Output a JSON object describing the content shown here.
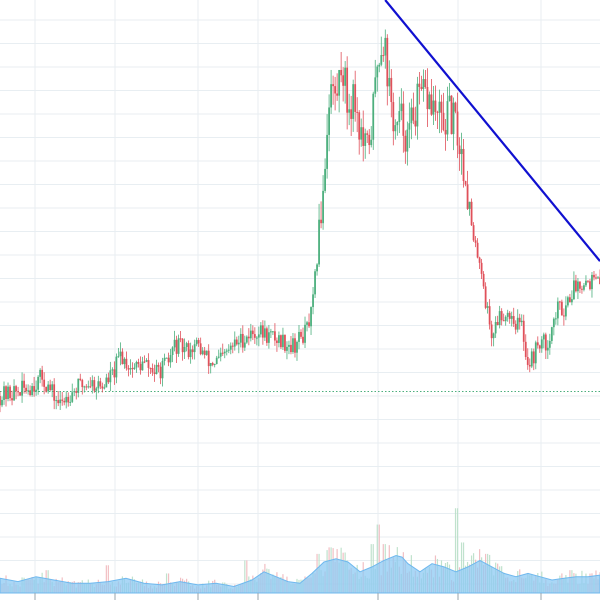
{
  "chart_data": {
    "type": "candlestick",
    "title": "",
    "xlabel": "",
    "ylabel": "",
    "grid": true,
    "legend": "none",
    "colors": {
      "up": "#4caf7d",
      "down": "#e0505a",
      "trendline": "#1010d0",
      "volume_area": "#8ec9f3",
      "volume_up": "#b9dfc8",
      "volume_down": "#f0b8bd",
      "reference_line": "#4caf7d",
      "grid": "#e8eef2"
    },
    "price_range": [
      0,
      100
    ],
    "volume_range": [
      0,
      100
    ],
    "reference_level": 17,
    "trendline": {
      "from": {
        "x": 64.2,
        "y": 100
      },
      "to": {
        "x": 100,
        "y": 53
      }
    },
    "price_path": [
      [
        0,
        16
      ],
      [
        3,
        17
      ],
      [
        5,
        18
      ],
      [
        7,
        20
      ],
      [
        9,
        16
      ],
      [
        10,
        14
      ],
      [
        11,
        16
      ],
      [
        13,
        18
      ],
      [
        15,
        19
      ],
      [
        17,
        18
      ],
      [
        19,
        21
      ],
      [
        20,
        25
      ],
      [
        22,
        22
      ],
      [
        24,
        23
      ],
      [
        26,
        21
      ],
      [
        28,
        23
      ],
      [
        29,
        27
      ],
      [
        31,
        26
      ],
      [
        33,
        27
      ],
      [
        35,
        23
      ],
      [
        37,
        24
      ],
      [
        39,
        27
      ],
      [
        41,
        29
      ],
      [
        43,
        30
      ],
      [
        45,
        29
      ],
      [
        47,
        28
      ],
      [
        49,
        27
      ],
      [
        51,
        30
      ],
      [
        52,
        34
      ],
      [
        53,
        48
      ],
      [
        54,
        64
      ],
      [
        55,
        84
      ],
      [
        56,
        80
      ],
      [
        57,
        89
      ],
      [
        58,
        78
      ],
      [
        59,
        82
      ],
      [
        60,
        73
      ],
      [
        61,
        68
      ],
      [
        62,
        75
      ],
      [
        63,
        90
      ],
      [
        64,
        94
      ],
      [
        65,
        80
      ],
      [
        66,
        73
      ],
      [
        67,
        76
      ],
      [
        68,
        71
      ],
      [
        69,
        78
      ],
      [
        70,
        80
      ],
      [
        71,
        81
      ],
      [
        72,
        79
      ],
      [
        73,
        76
      ],
      [
        74,
        75
      ],
      [
        75,
        77
      ],
      [
        76,
        74
      ],
      [
        77,
        68
      ],
      [
        78,
        60
      ],
      [
        79,
        48
      ],
      [
        80,
        46
      ],
      [
        81,
        36
      ],
      [
        82,
        29
      ],
      [
        83,
        33
      ],
      [
        84,
        34
      ],
      [
        85,
        34
      ],
      [
        86,
        32
      ],
      [
        87,
        31
      ],
      [
        88,
        23
      ],
      [
        89,
        25
      ],
      [
        90,
        28
      ],
      [
        91,
        27
      ],
      [
        92,
        31
      ],
      [
        93,
        35
      ],
      [
        94,
        35
      ],
      [
        95,
        38
      ],
      [
        96,
        40
      ],
      [
        97,
        41
      ],
      [
        98,
        41
      ],
      [
        99,
        41
      ],
      [
        100,
        40
      ]
    ],
    "volume_area_path": [
      [
        0,
        9
      ],
      [
        3,
        7
      ],
      [
        6,
        10
      ],
      [
        9,
        8
      ],
      [
        12,
        6
      ],
      [
        15,
        6
      ],
      [
        18,
        7
      ],
      [
        21,
        9
      ],
      [
        24,
        6
      ],
      [
        27,
        5
      ],
      [
        30,
        7
      ],
      [
        33,
        5
      ],
      [
        36,
        6
      ],
      [
        39,
        4
      ],
      [
        42,
        8
      ],
      [
        44,
        13
      ],
      [
        46,
        10
      ],
      [
        48,
        7
      ],
      [
        50,
        6
      ],
      [
        52,
        12
      ],
      [
        54,
        19
      ],
      [
        56,
        21
      ],
      [
        58,
        19
      ],
      [
        60,
        13
      ],
      [
        62,
        16
      ],
      [
        64,
        20
      ],
      [
        66,
        23
      ],
      [
        67,
        22
      ],
      [
        68,
        18
      ],
      [
        70,
        13
      ],
      [
        72,
        18
      ],
      [
        74,
        16
      ],
      [
        76,
        13
      ],
      [
        78,
        16
      ],
      [
        80,
        20
      ],
      [
        82,
        16
      ],
      [
        84,
        12
      ],
      [
        86,
        10
      ],
      [
        88,
        12
      ],
      [
        90,
        10
      ],
      [
        92,
        8
      ],
      [
        94,
        9
      ],
      [
        96,
        10
      ],
      [
        98,
        10
      ],
      [
        100,
        11
      ]
    ],
    "volume_spikes": [
      [
        8,
        14
      ],
      [
        18,
        17
      ],
      [
        28,
        12
      ],
      [
        41,
        20
      ],
      [
        53,
        24
      ],
      [
        55,
        28
      ],
      [
        62,
        30
      ],
      [
        63,
        42
      ],
      [
        64,
        30
      ],
      [
        76,
        52
      ],
      [
        77,
        31
      ],
      [
        81,
        24
      ],
      [
        95,
        14
      ]
    ]
  }
}
